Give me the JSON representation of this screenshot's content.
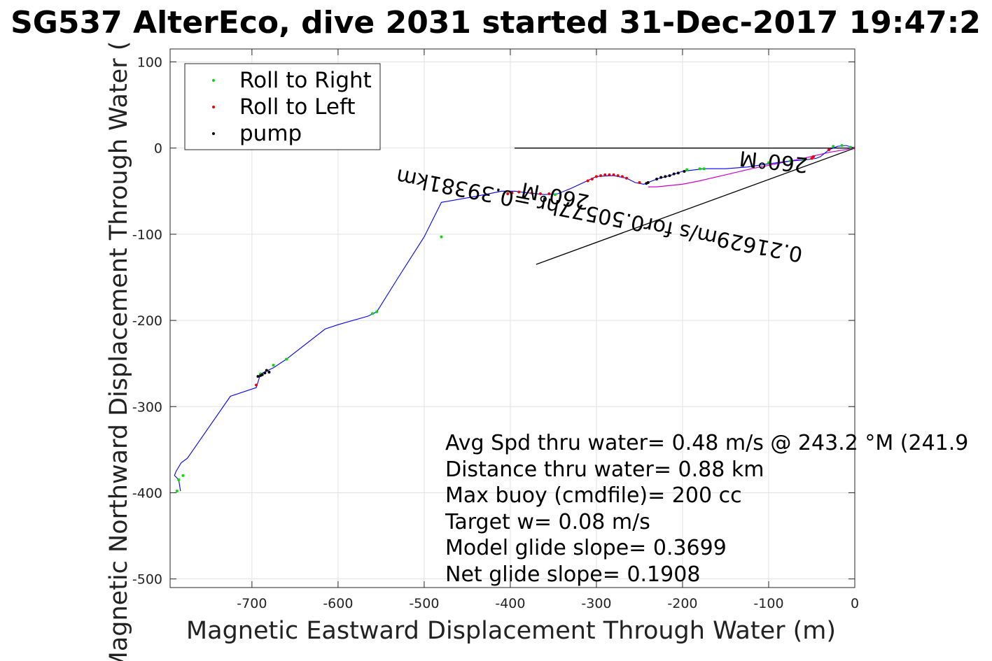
{
  "chart_data": {
    "type": "line",
    "title": "SG537 AlterEco, dive 2031 started 31-Dec-2017 19:47:2",
    "xlabel": "Magnetic Eastward Displacement Through Water (m)",
    "ylabel": "Magnetic Northward Displacement Through Water (",
    "xlim": [
      -795,
      0
    ],
    "ylim": [
      -510,
      115
    ],
    "xticks": [
      -700,
      -600,
      -500,
      -400,
      -300,
      -200,
      -100,
      0
    ],
    "xtick_labels": [
      "-700",
      "-600",
      "-500",
      "-400",
      "-300",
      "-200",
      "-100",
      "0"
    ],
    "yticks": [
      100,
      0,
      -100,
      -200,
      -300,
      -400,
      -500
    ],
    "ytick_labels": [
      "100",
      "0",
      "-100",
      "-200",
      "-300",
      "-400",
      "-500"
    ],
    "grid": true,
    "legend_position": "top-left",
    "legend": [
      {
        "label": "Roll to Right",
        "color": "#00dd00"
      },
      {
        "label": "Roll to Left",
        "color": "#ee0000"
      },
      {
        "label": "pump",
        "color": "#000000"
      }
    ],
    "track": {
      "color": "#0000ff",
      "x": [
        0,
        -10,
        -20,
        -30,
        -40,
        -45,
        -60,
        -75,
        -90,
        -105,
        -125,
        -150,
        -175,
        -200,
        -215,
        -230,
        -245,
        -255,
        -265,
        -280,
        -300,
        -315,
        -330,
        -345,
        -360,
        -380,
        -395,
        -410,
        -440,
        -480,
        -500,
        -530,
        -555,
        -565,
        -600,
        -615,
        -660,
        -675,
        -690,
        -695,
        -725,
        -775,
        -782,
        -788,
        -790,
        -785,
        -783
      ],
      "y": [
        0,
        3,
        2,
        -2,
        -10,
        -12,
        -14,
        -15,
        -17,
        -19,
        -22,
        -24,
        -24,
        -27,
        -32,
        -36,
        -42,
        -40,
        -35,
        -32,
        -33,
        -40,
        -47,
        -53,
        -54,
        -52,
        -50,
        -50,
        -56,
        -63,
        -103,
        -150,
        -190,
        -195,
        -205,
        -210,
        -245,
        -255,
        -262,
        -278,
        -288,
        -360,
        -365,
        -375,
        -380,
        -385,
        -398
      ]
    },
    "track2": {
      "color": "#cc00cc",
      "x": [
        0,
        -30,
        -60,
        -90,
        -120,
        -150,
        -180,
        -200,
        -230,
        -240
      ],
      "y": [
        0,
        -5,
        -12,
        -18,
        -24,
        -31,
        -38,
        -42,
        -45,
        -45
      ]
    },
    "markers_green": {
      "x": [
        -5,
        -15,
        -25,
        -60,
        -75,
        -100,
        -175,
        -180,
        -195,
        -348,
        -480,
        -555,
        -560,
        -660,
        -675,
        -690,
        -780,
        -785,
        -787
      ],
      "y": [
        1,
        3,
        2,
        -14,
        -15,
        -17,
        -24,
        -24,
        -25,
        -54,
        -103,
        -190,
        -192,
        -245,
        -252,
        -262,
        -380,
        -385,
        -398
      ]
    },
    "markers_red": {
      "x": [
        0,
        -30,
        -48,
        -50,
        -250,
        -265,
        -270,
        -275,
        -280,
        -285,
        -290,
        -295,
        -300,
        -305,
        -310,
        -355,
        -365,
        -375,
        -390,
        -398,
        -403,
        -695
      ],
      "y": [
        0,
        -2,
        -10,
        -12,
        -40,
        -35,
        -33,
        -32,
        -31,
        -31,
        -31,
        -32,
        -33,
        -36,
        -38,
        -53,
        -53,
        -52,
        -51,
        -52,
        -53,
        -275
      ]
    },
    "markers_pump": {
      "x": [
        -198,
        -205,
        -210,
        -215,
        -220,
        -225,
        -230,
        -240,
        -242,
        -680,
        -683,
        -685,
        -688,
        -690,
        -693
      ],
      "y": [
        -27,
        -29,
        -30,
        -32,
        -33,
        -34,
        -36,
        -40,
        -41,
        -260,
        -258,
        -261,
        -263,
        -264,
        -265
      ]
    },
    "current_lines": [
      {
        "x": [
          0,
          -395
        ],
        "y": [
          0,
          0
        ]
      },
      {
        "x": [
          0,
          -370
        ],
        "y": [
          0,
          -135
        ]
      }
    ],
    "annotations": {
      "current_text": "0.21629m/s for0.50577hr =0.39381km",
      "current_heading": "260°M",
      "end_heading": "260°M"
    },
    "stats": [
      "Avg Spd thru water=  0.48 m/s @ 243.2 °M (241.9",
      "Distance thru water=  0.88 km",
      "Max buoy (cmdfile)= 200 cc",
      "Target w= 0.08 m/s",
      "Model glide slope= 0.3699",
      "Net glide slope= 0.1908"
    ]
  }
}
